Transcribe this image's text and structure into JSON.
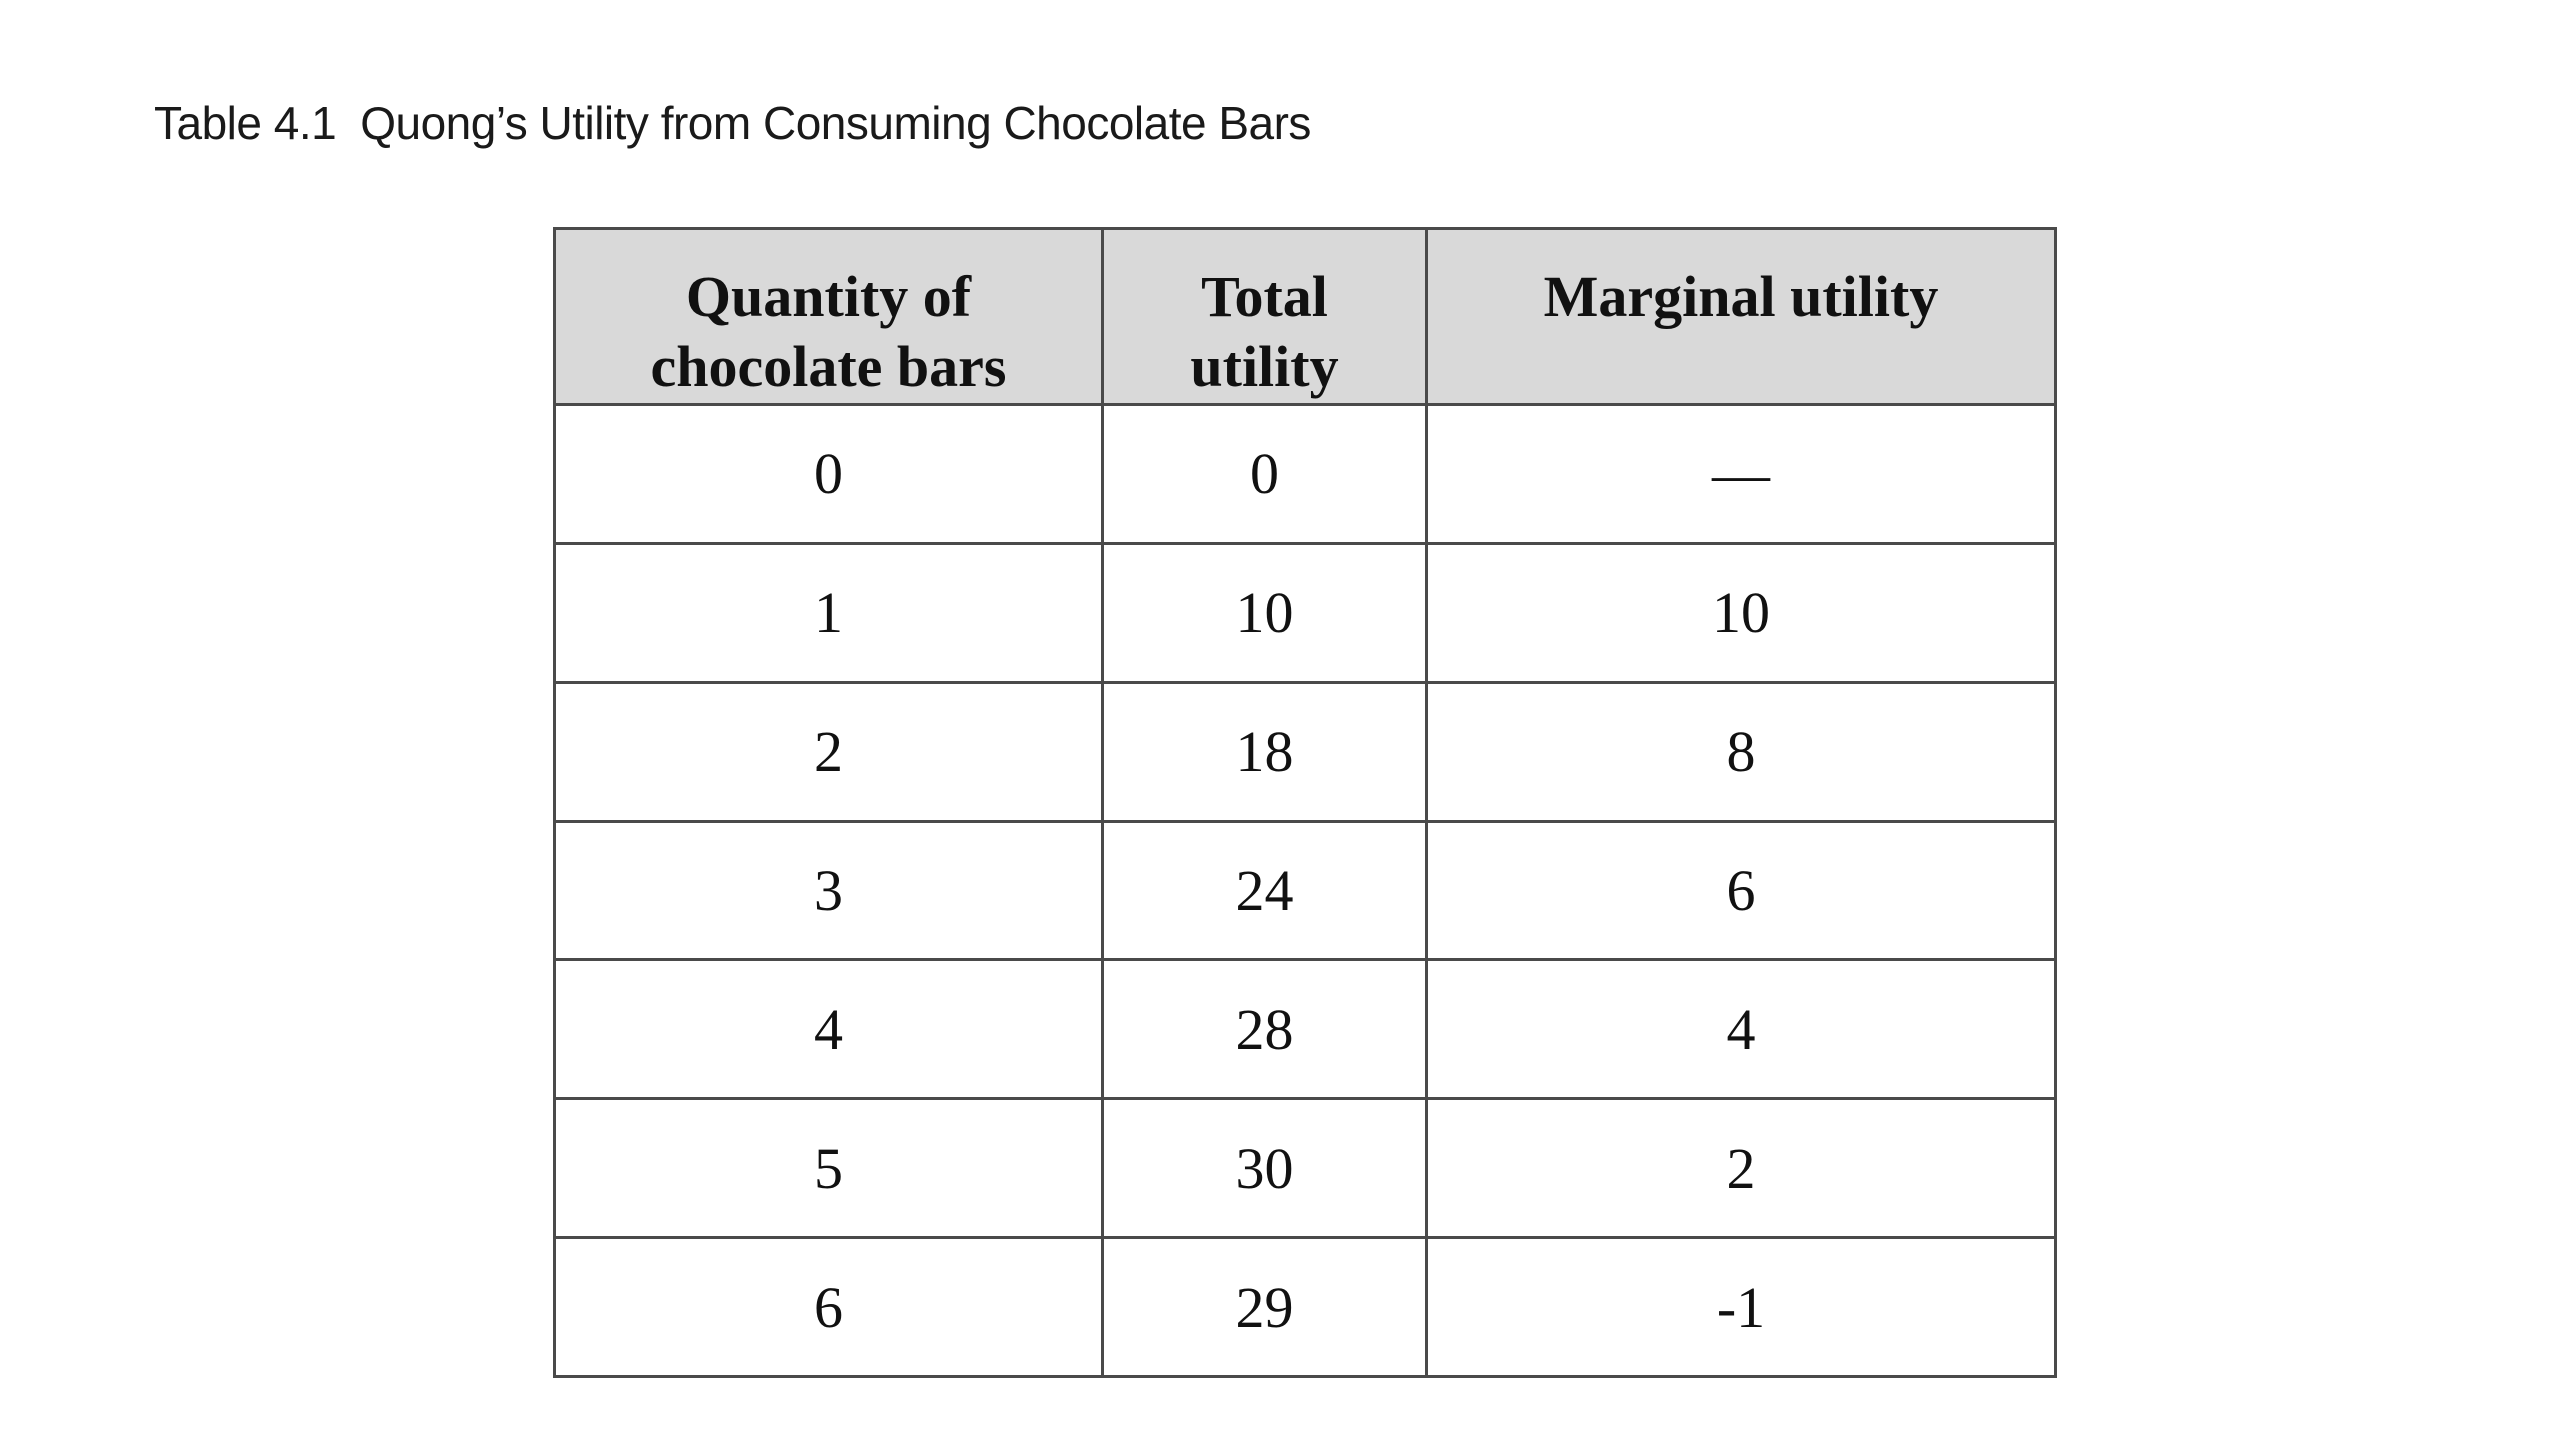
{
  "caption": {
    "label": "Table 4.1",
    "title": "Quong’s Utility from Consuming Chocolate Bars"
  },
  "table": {
    "headers": [
      "Quantity of\nchocolate bars",
      "Total\nutility",
      "Marginal utility"
    ],
    "rows": [
      [
        "0",
        "0",
        "—"
      ],
      [
        "1",
        "10",
        "10"
      ],
      [
        "2",
        "18",
        "8"
      ],
      [
        "3",
        "24",
        "6"
      ],
      [
        "4",
        "28",
        "4"
      ],
      [
        "5",
        "30",
        "2"
      ],
      [
        "6",
        "29",
        "-1"
      ]
    ]
  }
}
